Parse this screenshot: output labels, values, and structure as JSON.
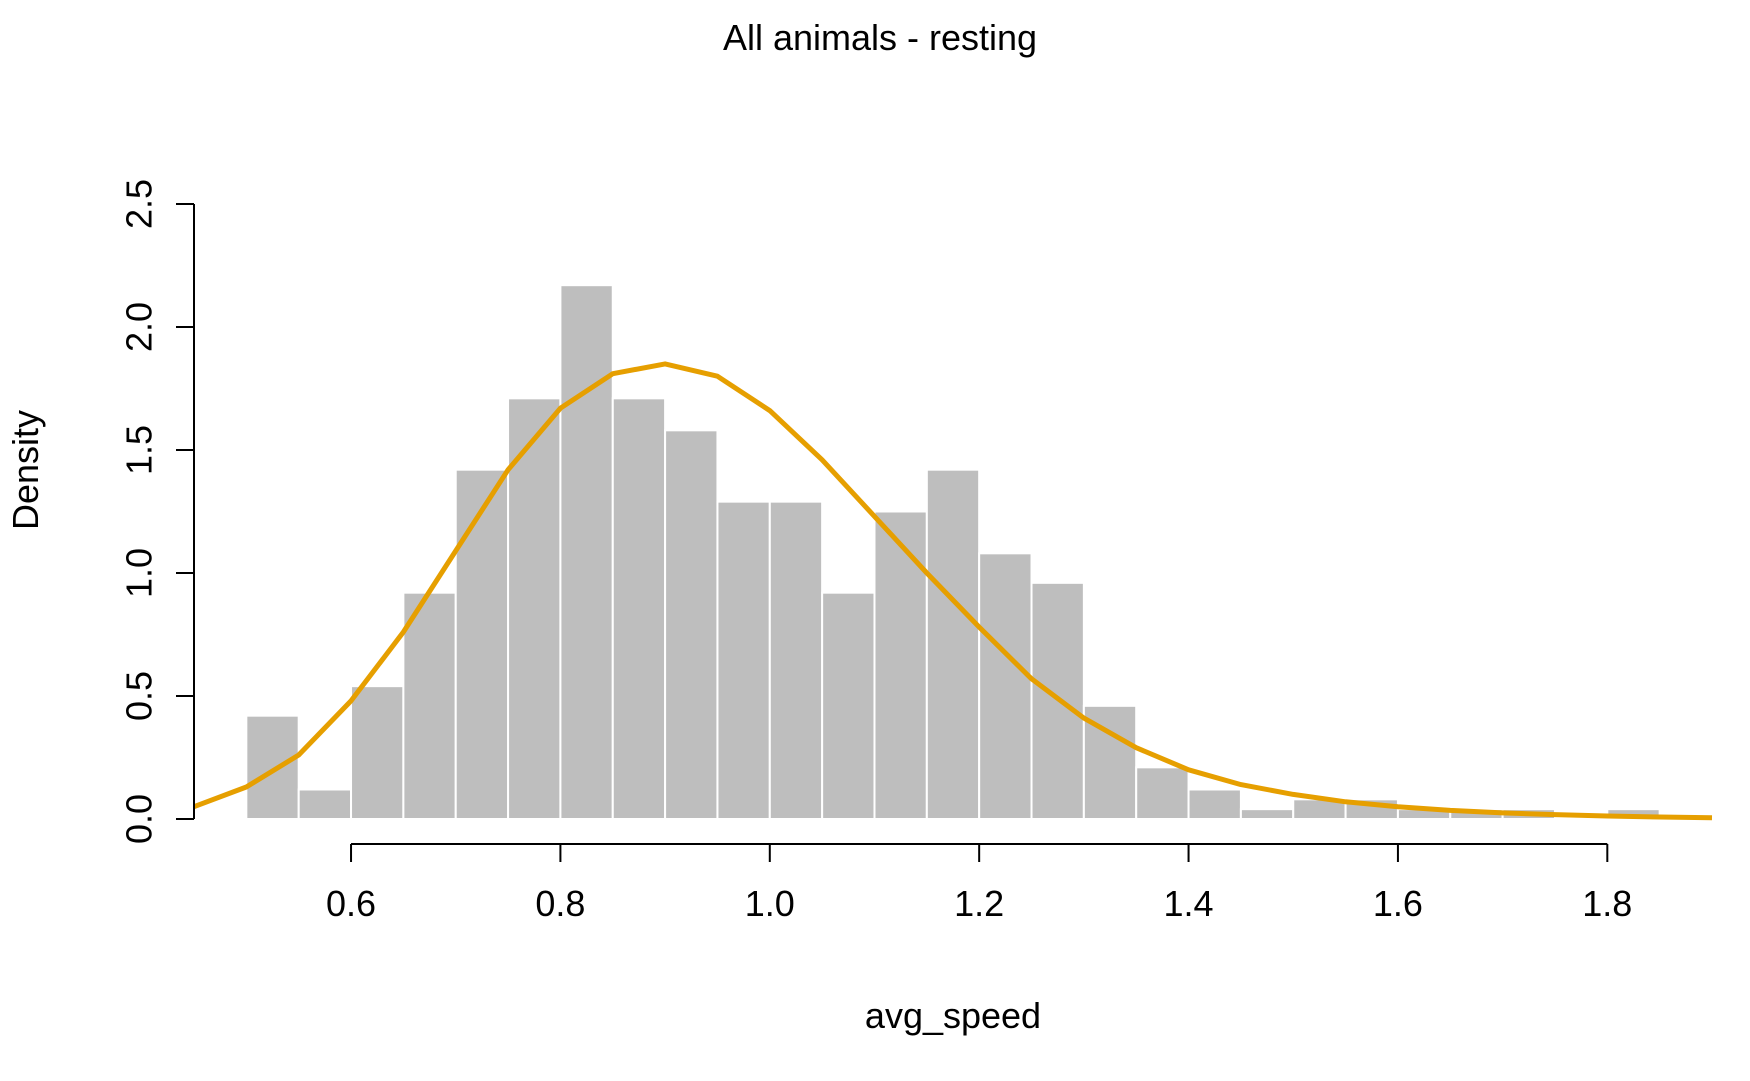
{
  "chart_data": {
    "type": "bar",
    "title": "All animals - resting",
    "xlabel": "avg_speed",
    "ylabel": "Density",
    "xlim": [
      0.45,
      1.9
    ],
    "ylim": [
      0,
      2.5
    ],
    "x_ticks": [
      "0.6",
      "0.8",
      "1.0",
      "1.2",
      "1.4",
      "1.6",
      "1.8"
    ],
    "y_ticks": [
      "0.0",
      "0.5",
      "1.0",
      "1.5",
      "2.0",
      "2.5"
    ],
    "bins": [
      {
        "start": 0.5,
        "end": 0.55,
        "density": 0.42
      },
      {
        "start": 0.55,
        "end": 0.6,
        "density": 0.12
      },
      {
        "start": 0.6,
        "end": 0.65,
        "density": 0.54
      },
      {
        "start": 0.65,
        "end": 0.7,
        "density": 0.92
      },
      {
        "start": 0.7,
        "end": 0.75,
        "density": 1.42
      },
      {
        "start": 0.75,
        "end": 0.8,
        "density": 1.71
      },
      {
        "start": 0.8,
        "end": 0.85,
        "density": 2.17
      },
      {
        "start": 0.85,
        "end": 0.9,
        "density": 1.71
      },
      {
        "start": 0.9,
        "end": 0.95,
        "density": 1.58
      },
      {
        "start": 0.95,
        "end": 1.0,
        "density": 1.29
      },
      {
        "start": 1.0,
        "end": 1.05,
        "density": 1.29
      },
      {
        "start": 1.05,
        "end": 1.1,
        "density": 0.92
      },
      {
        "start": 1.1,
        "end": 1.15,
        "density": 1.25
      },
      {
        "start": 1.15,
        "end": 1.2,
        "density": 1.42
      },
      {
        "start": 1.2,
        "end": 1.25,
        "density": 1.08
      },
      {
        "start": 1.25,
        "end": 1.3,
        "density": 0.96
      },
      {
        "start": 1.3,
        "end": 1.35,
        "density": 0.46
      },
      {
        "start": 1.35,
        "end": 1.4,
        "density": 0.21
      },
      {
        "start": 1.4,
        "end": 1.45,
        "density": 0.12
      },
      {
        "start": 1.45,
        "end": 1.5,
        "density": 0.04
      },
      {
        "start": 1.5,
        "end": 1.55,
        "density": 0.08
      },
      {
        "start": 1.55,
        "end": 1.6,
        "density": 0.08
      },
      {
        "start": 1.6,
        "end": 1.65,
        "density": 0.04
      },
      {
        "start": 1.65,
        "end": 1.7,
        "density": 0.04
      },
      {
        "start": 1.7,
        "end": 1.75,
        "density": 0.04
      },
      {
        "start": 1.75,
        "end": 1.8,
        "density": 0.0
      },
      {
        "start": 1.8,
        "end": 1.85,
        "density": 0.04
      }
    ],
    "curve": {
      "points": [
        [
          0.45,
          0.05
        ],
        [
          0.5,
          0.13
        ],
        [
          0.55,
          0.26
        ],
        [
          0.6,
          0.48
        ],
        [
          0.65,
          0.76
        ],
        [
          0.7,
          1.09
        ],
        [
          0.75,
          1.42
        ],
        [
          0.8,
          1.67
        ],
        [
          0.85,
          1.81
        ],
        [
          0.9,
          1.85
        ],
        [
          0.95,
          1.8
        ],
        [
          1.0,
          1.66
        ],
        [
          1.05,
          1.46
        ],
        [
          1.1,
          1.23
        ],
        [
          1.15,
          1.0
        ],
        [
          1.2,
          0.78
        ],
        [
          1.25,
          0.57
        ],
        [
          1.3,
          0.41
        ],
        [
          1.35,
          0.29
        ],
        [
          1.4,
          0.2
        ],
        [
          1.45,
          0.14
        ],
        [
          1.5,
          0.1
        ],
        [
          1.55,
          0.07
        ],
        [
          1.6,
          0.05
        ],
        [
          1.65,
          0.035
        ],
        [
          1.7,
          0.025
        ],
        [
          1.75,
          0.018
        ],
        [
          1.8,
          0.012
        ],
        [
          1.85,
          0.008
        ],
        [
          1.9,
          0.005
        ]
      ]
    },
    "colors": {
      "bar_fill": "#bebebe",
      "bar_border": "#ffffff",
      "curve": "#e69f00",
      "axis": "#000000"
    },
    "grid": false
  }
}
